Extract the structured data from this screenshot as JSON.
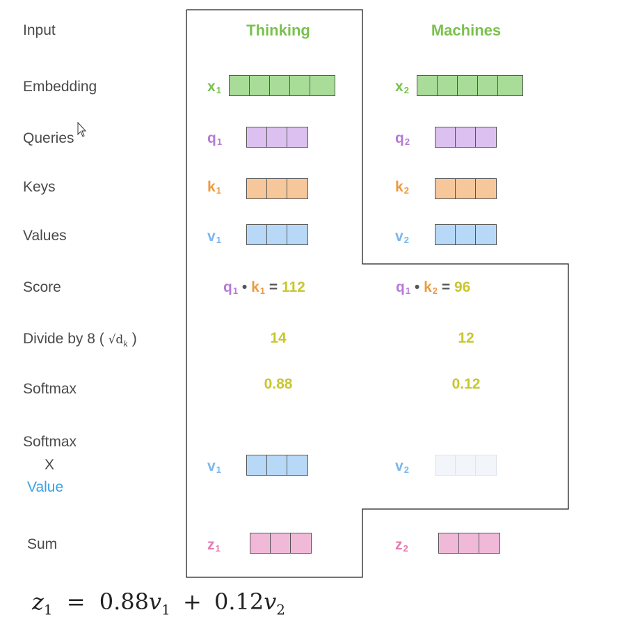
{
  "row_labels": {
    "input": "Input",
    "embedding": "Embedding",
    "queries": "Queries",
    "keys": "Keys",
    "values": "Values",
    "score": "Score",
    "divide_prefix": "Divide by 8 (",
    "divide_sqrt": "√d",
    "divide_sqrt_sub": "k",
    "divide_suffix": ")",
    "softmax": "Softmax",
    "softmax_value_line1": "Softmax",
    "softmax_value_line2": "X",
    "softmax_value_line3": "Value",
    "sum": "Sum"
  },
  "columns": [
    {
      "header": "Thinking",
      "embedding": {
        "name": "x",
        "sub": "1"
      },
      "query": {
        "name": "q",
        "sub": "1"
      },
      "key": {
        "name": "k",
        "sub": "1"
      },
      "value": {
        "name": "v",
        "sub": "1"
      },
      "score": {
        "q": "q",
        "q_sub": "1",
        "dot": "•",
        "k": "k",
        "k_sub": "1",
        "eq": "=",
        "result": "112"
      },
      "divided": "14",
      "softmax": "0.88",
      "weighted_value": {
        "name": "v",
        "sub": "1",
        "faded": false
      },
      "sum": {
        "name": "z",
        "sub": "1"
      }
    },
    {
      "header": "Machines",
      "embedding": {
        "name": "x",
        "sub": "2"
      },
      "query": {
        "name": "q",
        "sub": "2"
      },
      "key": {
        "name": "k",
        "sub": "2"
      },
      "value": {
        "name": "v",
        "sub": "2"
      },
      "score": {
        "q": "q",
        "q_sub": "1",
        "dot": "•",
        "k": "k",
        "k_sub": "2",
        "eq": "=",
        "result": "96"
      },
      "divided": "12",
      "softmax": "0.12",
      "weighted_value": {
        "name": "v",
        "sub": "2",
        "faded": true
      },
      "sum": {
        "name": "z",
        "sub": "2"
      }
    }
  ],
  "formula": {
    "lhs": "z",
    "lhs_sub": "1",
    "eq": "=",
    "t1_coef": "0.88",
    "t1_var": "v",
    "t1_sub": "1",
    "plus": "+",
    "t2_coef": "0.12",
    "t2_var": "v",
    "t2_sub": "2"
  },
  "colors": {
    "embedding": "#a8dc98",
    "query": "#dcc0f0",
    "key": "#f7c79c",
    "value": "#b7d8f7",
    "value_faded": "#f2f6fb",
    "sum": "#f1b9d8",
    "header": "#7ac14d",
    "number": "#c8c72c"
  }
}
